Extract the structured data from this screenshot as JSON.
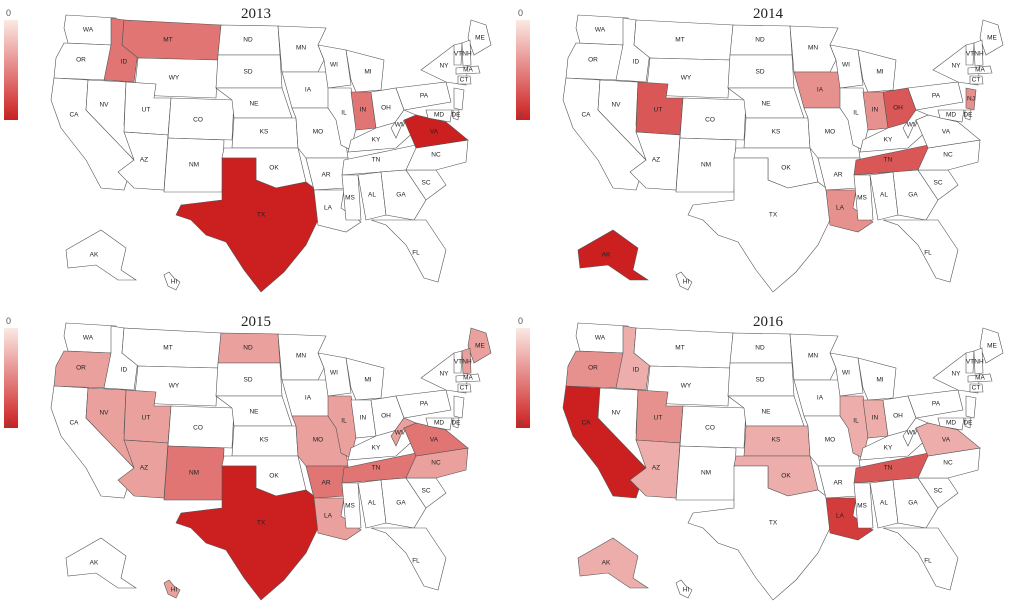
{
  "maps": [
    {
      "year": "2013",
      "legend_min": "0",
      "legend_max": "2",
      "max_value": 2,
      "states": [
        {
          "abbr": "ID",
          "value": 1
        },
        {
          "abbr": "MT",
          "value": 1
        },
        {
          "abbr": "IN",
          "value": 1
        },
        {
          "abbr": "VA",
          "value": 2
        },
        {
          "abbr": "TX",
          "value": 2
        }
      ],
      "labels": [
        "WA",
        "OR",
        "CA",
        "NV",
        "ID",
        "MT",
        "WY",
        "UT",
        "CO",
        "AZ",
        "NM",
        "ND",
        "SD",
        "NE",
        "KS",
        "OK",
        "TX",
        "MN",
        "IA",
        "MO",
        "AR",
        "LA",
        "WI",
        "IL",
        "MI",
        "IN",
        "OH",
        "KY",
        "TN",
        "MS",
        "AL",
        "GA",
        "FL",
        "SC",
        "NC",
        "VA",
        "WV",
        "PA",
        "NY",
        "ME",
        "VT",
        "NH",
        "MA",
        "CT",
        "MD",
        "DE",
        "AK",
        "HI"
      ]
    },
    {
      "year": "2014",
      "legend_min": "0",
      "legend_max": "3",
      "max_value": 3,
      "states": [
        {
          "abbr": "UT",
          "value": 2
        },
        {
          "abbr": "IA",
          "value": 1
        },
        {
          "abbr": "IN",
          "value": 1
        },
        {
          "abbr": "OH",
          "value": 2
        },
        {
          "abbr": "TN",
          "value": 2
        },
        {
          "abbr": "LA",
          "value": 1
        },
        {
          "abbr": "NJ",
          "value": 1
        },
        {
          "abbr": "AK",
          "value": 3
        }
      ],
      "labels": [
        "WA",
        "OR",
        "CA",
        "NV",
        "ID",
        "MT",
        "WY",
        "UT",
        "CO",
        "AZ",
        "NM",
        "ND",
        "SD",
        "NE",
        "KS",
        "OK",
        "TX",
        "MN",
        "IA",
        "MO",
        "AR",
        "LA",
        "WI",
        "IL",
        "MI",
        "IN",
        "OH",
        "KY",
        "TN",
        "MS",
        "AL",
        "GA",
        "FL",
        "SC",
        "NC",
        "VA",
        "WV",
        "PA",
        "NY",
        "ME",
        "VT",
        "NH",
        "MA",
        "CT",
        "NJ",
        "MD",
        "DE",
        "AK",
        "HI"
      ]
    },
    {
      "year": "2015",
      "legend_min": "0",
      "legend_max": "4",
      "max_value": 4,
      "states": [
        {
          "abbr": "OR",
          "value": 1
        },
        {
          "abbr": "NV",
          "value": 1
        },
        {
          "abbr": "UT",
          "value": 1
        },
        {
          "abbr": "AZ",
          "value": 1
        },
        {
          "abbr": "NM",
          "value": 2
        },
        {
          "abbr": "ND",
          "value": 1
        },
        {
          "abbr": "TX",
          "value": 4
        },
        {
          "abbr": "MO",
          "value": 1
        },
        {
          "abbr": "AR",
          "value": 2
        },
        {
          "abbr": "LA",
          "value": 1
        },
        {
          "abbr": "IL",
          "value": 1
        },
        {
          "abbr": "TN",
          "value": 2
        },
        {
          "abbr": "NC",
          "value": 1
        },
        {
          "abbr": "VA",
          "value": 2
        },
        {
          "abbr": "WV",
          "value": 1
        },
        {
          "abbr": "ME",
          "value": 1
        },
        {
          "abbr": "NH",
          "value": 1
        },
        {
          "abbr": "HI",
          "value": 1
        }
      ],
      "labels": [
        "WA",
        "OR",
        "CA",
        "NV",
        "ID",
        "MT",
        "WY",
        "UT",
        "CO",
        "AZ",
        "NM",
        "ND",
        "SD",
        "NE",
        "KS",
        "OK",
        "TX",
        "MN",
        "IA",
        "MO",
        "AR",
        "LA",
        "WI",
        "IL",
        "MI",
        "IN",
        "OH",
        "KY",
        "TN",
        "MS",
        "AL",
        "GA",
        "FL",
        "SC",
        "NC",
        "VA",
        "WV",
        "PA",
        "NY",
        "ME",
        "VT",
        "NH",
        "MA",
        "CT",
        "MD",
        "DE",
        "AK",
        "HI"
      ]
    },
    {
      "year": "2016",
      "legend_min": "0",
      "legend_max": "6",
      "max_value": 6,
      "states": [
        {
          "abbr": "CA",
          "value": 6
        },
        {
          "abbr": "OR",
          "value": 2
        },
        {
          "abbr": "ID",
          "value": 1
        },
        {
          "abbr": "UT",
          "value": 2
        },
        {
          "abbr": "AZ",
          "value": 1
        },
        {
          "abbr": "KS",
          "value": 1
        },
        {
          "abbr": "OK",
          "value": 1
        },
        {
          "abbr": "LA",
          "value": 5
        },
        {
          "abbr": "IL",
          "value": 1
        },
        {
          "abbr": "IN",
          "value": 1
        },
        {
          "abbr": "TN",
          "value": 4
        },
        {
          "abbr": "VA",
          "value": 1
        },
        {
          "abbr": "AK",
          "value": 1
        }
      ],
      "labels": [
        "WA",
        "OR",
        "CA",
        "NV",
        "ID",
        "MT",
        "WY",
        "UT",
        "CO",
        "AZ",
        "NM",
        "ND",
        "SD",
        "NE",
        "KS",
        "OK",
        "TX",
        "MN",
        "IA",
        "MO",
        "AR",
        "LA",
        "WI",
        "IL",
        "MI",
        "IN",
        "OH",
        "KY",
        "TN",
        "MS",
        "AL",
        "GA",
        "FL",
        "SC",
        "NC",
        "VA",
        "WV",
        "PA",
        "NY",
        "ME",
        "VT",
        "NH",
        "MA",
        "CT",
        "MD",
        "DE",
        "AK",
        "HI"
      ]
    }
  ],
  "colors": {
    "low": "#fbe9e4",
    "high": "#cc1f1f",
    "empty": "#ffffff",
    "stroke": "#555555"
  }
}
